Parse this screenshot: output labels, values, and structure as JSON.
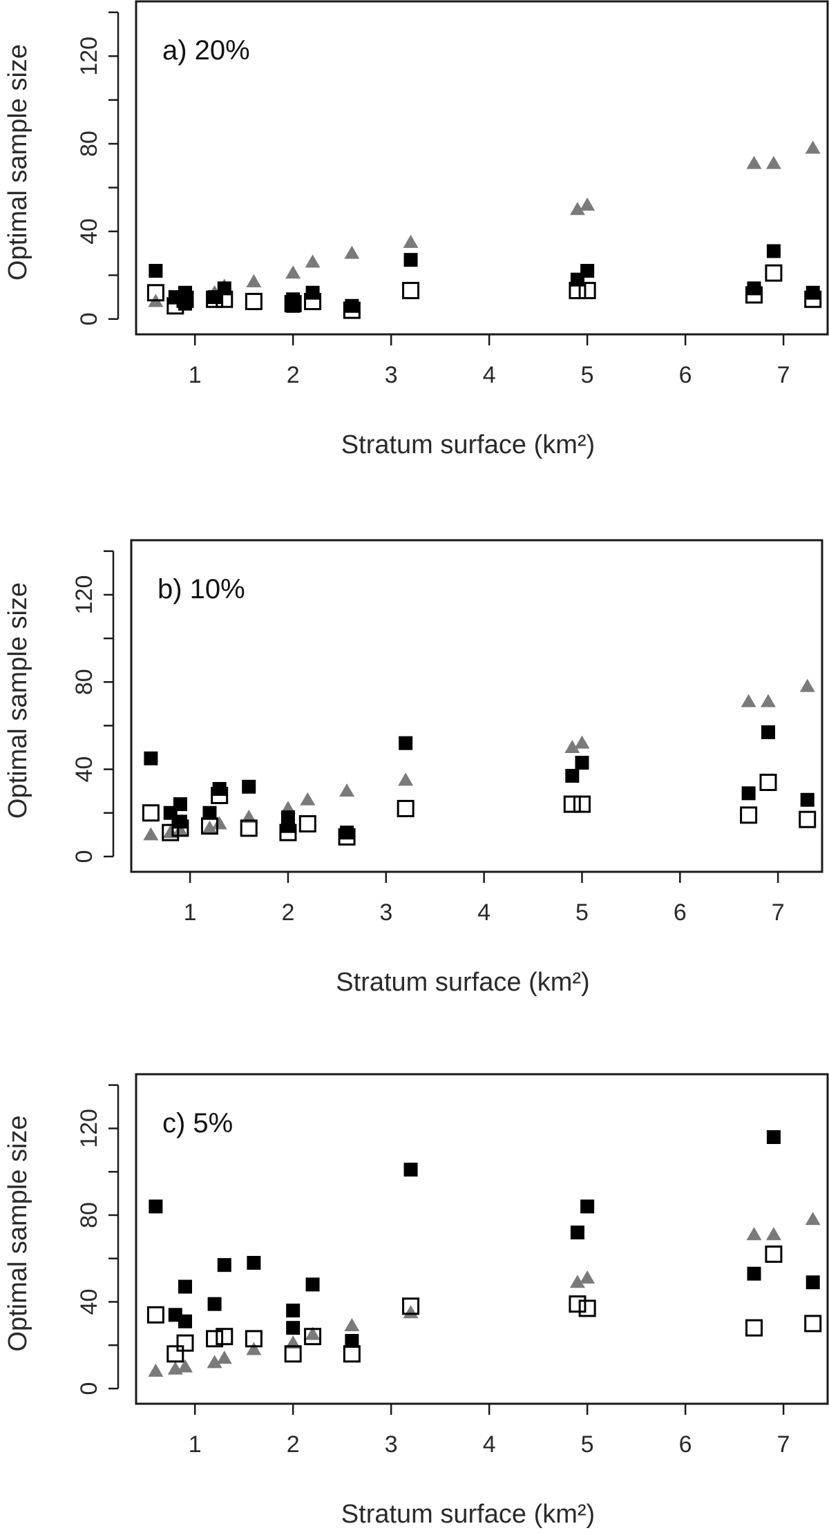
{
  "colors": {
    "frame": "#1a1a1a",
    "text": "#2a2a2a",
    "filled_square": "#000000",
    "open_square_stroke": "#000000",
    "triangle": "#7a7a7a"
  },
  "chart_data": [
    {
      "type": "scatter",
      "title": "a) 20%",
      "xlabel": "Stratum surface (km²)",
      "ylabel": "Optimal sample size",
      "xlim": [
        0.4,
        7.45
      ],
      "ylim": [
        -7,
        145
      ],
      "xticks": [
        1,
        2,
        3,
        4,
        5,
        6,
        7
      ],
      "yticks": [
        0,
        40,
        80,
        120
      ],
      "grid": false,
      "series": [
        {
          "marker": "filled-square",
          "x": [
            0.6,
            0.8,
            0.9,
            0.9,
            1.2,
            1.3,
            2.0,
            2.0,
            2.2,
            2.6,
            3.2,
            4.9,
            5.0,
            6.7,
            6.9,
            7.3
          ],
          "y": [
            22,
            10,
            12,
            7,
            10,
            14,
            9,
            6,
            12,
            6,
            27,
            18,
            22,
            14,
            31,
            12
          ]
        },
        {
          "marker": "open-square",
          "x": [
            0.6,
            0.8,
            0.9,
            1.2,
            1.3,
            1.6,
            2.0,
            2.2,
            2.6,
            3.2,
            4.9,
            5.0,
            6.7,
            6.9,
            7.3
          ],
          "y": [
            12,
            6,
            9,
            9,
            9,
            8,
            7,
            8,
            4,
            13,
            13,
            13,
            11,
            21,
            9
          ]
        },
        {
          "marker": "triangle",
          "x": [
            0.6,
            0.8,
            0.9,
            1.2,
            1.3,
            1.6,
            2.0,
            2.2,
            2.6,
            3.2,
            4.9,
            5.0,
            6.7,
            6.9,
            7.3
          ],
          "y": [
            8,
            9,
            10,
            12,
            15,
            17,
            21,
            26,
            30,
            35,
            50,
            52,
            71,
            71,
            78
          ]
        }
      ]
    },
    {
      "type": "scatter",
      "title": "b) 10%",
      "xlabel": "Stratum surface (km²)",
      "ylabel": "Optimal sample size",
      "xlim": [
        0.4,
        7.45
      ],
      "ylim": [
        -7,
        145
      ],
      "xticks": [
        1,
        2,
        3,
        4,
        5,
        6,
        7
      ],
      "yticks": [
        0,
        40,
        80,
        120
      ],
      "grid": false,
      "series": [
        {
          "marker": "filled-square",
          "x": [
            0.6,
            0.8,
            0.9,
            0.9,
            1.2,
            1.3,
            1.6,
            2.0,
            2.0,
            2.6,
            3.2,
            4.9,
            5.0,
            6.7,
            6.9,
            7.3
          ],
          "y": [
            45,
            20,
            24,
            16,
            20,
            31,
            32,
            18,
            14,
            11,
            52,
            37,
            43,
            29,
            57,
            26
          ]
        },
        {
          "marker": "open-square",
          "x": [
            0.6,
            0.8,
            0.9,
            1.2,
            1.3,
            1.6,
            2.0,
            2.2,
            2.6,
            3.2,
            4.9,
            5.0,
            6.7,
            6.9,
            7.3
          ],
          "y": [
            20,
            11,
            13,
            14,
            28,
            13,
            11,
            15,
            9,
            22,
            24,
            24,
            19,
            34,
            17
          ]
        },
        {
          "marker": "triangle",
          "x": [
            0.6,
            0.8,
            0.9,
            1.2,
            1.3,
            1.6,
            2.0,
            2.2,
            2.6,
            3.2,
            4.9,
            5.0,
            6.7,
            6.9,
            7.3
          ],
          "y": [
            10,
            11,
            12,
            13,
            15,
            18,
            22,
            26,
            30,
            35,
            50,
            52,
            71,
            71,
            78
          ]
        }
      ]
    },
    {
      "type": "scatter",
      "title": "c) 5%",
      "xlabel": "Stratum surface (km²)",
      "ylabel": "Optimal sample size",
      "xlim": [
        0.4,
        7.45
      ],
      "ylim": [
        -7,
        145
      ],
      "xticks": [
        1,
        2,
        3,
        4,
        5,
        6,
        7
      ],
      "yticks": [
        0,
        40,
        80,
        120
      ],
      "grid": false,
      "series": [
        {
          "marker": "filled-square",
          "x": [
            0.6,
            0.8,
            0.9,
            0.9,
            1.2,
            1.3,
            1.6,
            2.0,
            2.0,
            2.2,
            2.6,
            3.2,
            4.9,
            5.0,
            6.7,
            6.9,
            7.3
          ],
          "y": [
            84,
            34,
            31,
            47,
            39,
            57,
            58,
            36,
            28,
            48,
            22,
            101,
            72,
            84,
            53,
            116,
            49
          ]
        },
        {
          "marker": "open-square",
          "x": [
            0.6,
            0.8,
            0.9,
            1.2,
            1.3,
            1.6,
            2.0,
            2.2,
            2.6,
            3.2,
            4.9,
            5.0,
            6.7,
            6.9,
            7.3
          ],
          "y": [
            34,
            16,
            21,
            23,
            24,
            23,
            16,
            24,
            16,
            38,
            39,
            37,
            28,
            62,
            30
          ]
        },
        {
          "marker": "triangle",
          "x": [
            0.6,
            0.8,
            0.9,
            1.2,
            1.3,
            1.6,
            2.0,
            2.2,
            2.6,
            3.2,
            4.9,
            5.0,
            6.7,
            6.9,
            7.3
          ],
          "y": [
            8,
            9,
            10,
            12,
            14,
            18,
            21,
            25,
            29,
            35,
            49,
            51,
            71,
            71,
            78
          ]
        }
      ]
    }
  ]
}
